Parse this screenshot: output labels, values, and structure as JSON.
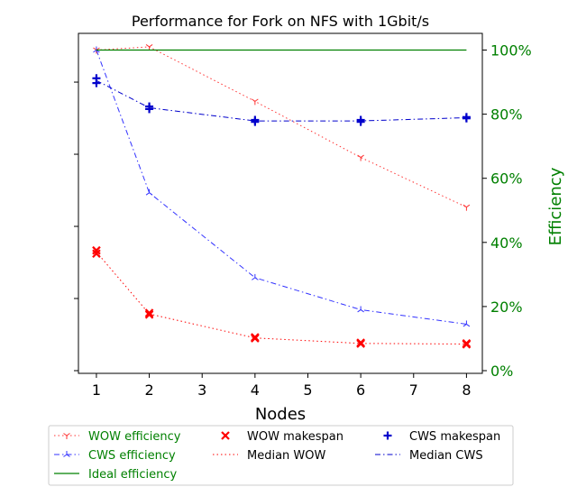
{
  "chart_data": {
    "type": "line",
    "title": "Performance for Fork on NFS with 1Gbit/s",
    "xlabel": "Nodes",
    "ylabel_right": "Efficiency",
    "x_ticks": [
      "1",
      "2",
      "3",
      "4",
      "5",
      "6",
      "7",
      "8"
    ],
    "right_ticks": [
      "0%",
      "20%",
      "40%",
      "60%",
      "80%",
      "100%"
    ],
    "right_ylim": [
      0,
      1.0
    ],
    "left_ylim": [
      0,
      1.0
    ],
    "legend_placement": "below",
    "series": [
      {
        "name": "WOW efficiency",
        "axis": "right",
        "color": "#ff3333",
        "style": "dotted",
        "marker": "tri_down",
        "x": [
          1,
          2,
          4,
          6,
          8
        ],
        "values": [
          1.0,
          1.01,
          0.84,
          0.665,
          0.51
        ]
      },
      {
        "name": "CWS efficiency",
        "axis": "right",
        "color": "#3333ff",
        "style": "dashdot",
        "marker": "tri_up",
        "x": [
          1,
          2,
          4,
          6,
          8
        ],
        "values": [
          1.0,
          0.555,
          0.29,
          0.19,
          0.145
        ]
      },
      {
        "name": "Ideal efficiency",
        "axis": "right",
        "color": "#008000",
        "style": "solid",
        "marker": "none",
        "x": [
          1,
          8
        ],
        "values": [
          1.0,
          1.0
        ]
      },
      {
        "name": "WOW makespan",
        "axis": "left",
        "color": "#ff0000",
        "style": "none",
        "marker": "x",
        "x": [
          1,
          1,
          2,
          2,
          4,
          4,
          6,
          6,
          8,
          8
        ],
        "values": [
          0.375,
          0.365,
          0.18,
          0.175,
          0.104,
          0.101,
          0.087,
          0.084,
          0.085,
          0.082
        ]
      },
      {
        "name": "Median WOW",
        "axis": "left",
        "color": "#ff0000",
        "style": "dotted",
        "marker": "none",
        "x": [
          1,
          2,
          4,
          6,
          8
        ],
        "values": [
          0.37,
          0.177,
          0.102,
          0.085,
          0.083
        ]
      },
      {
        "name": "CWS makespan",
        "axis": "left",
        "color": "#0000cc",
        "style": "none",
        "marker": "plus",
        "x": [
          1,
          1,
          2,
          2,
          4,
          4,
          6,
          6,
          8,
          8
        ],
        "values": [
          0.912,
          0.897,
          0.824,
          0.816,
          0.782,
          0.776,
          0.782,
          0.776,
          0.791,
          0.787
        ]
      },
      {
        "name": "Median CWS",
        "axis": "left",
        "color": "#0000cc",
        "style": "dashdot",
        "marker": "none",
        "x": [
          1,
          2,
          4,
          6,
          8
        ],
        "values": [
          0.905,
          0.82,
          0.779,
          0.779,
          0.789
        ]
      }
    ],
    "legend_columns": [
      [
        "WOW efficiency",
        "CWS efficiency",
        "Ideal efficiency"
      ],
      [
        "WOW makespan",
        "Median WOW"
      ],
      [
        "CWS makespan",
        "Median CWS"
      ]
    ]
  }
}
